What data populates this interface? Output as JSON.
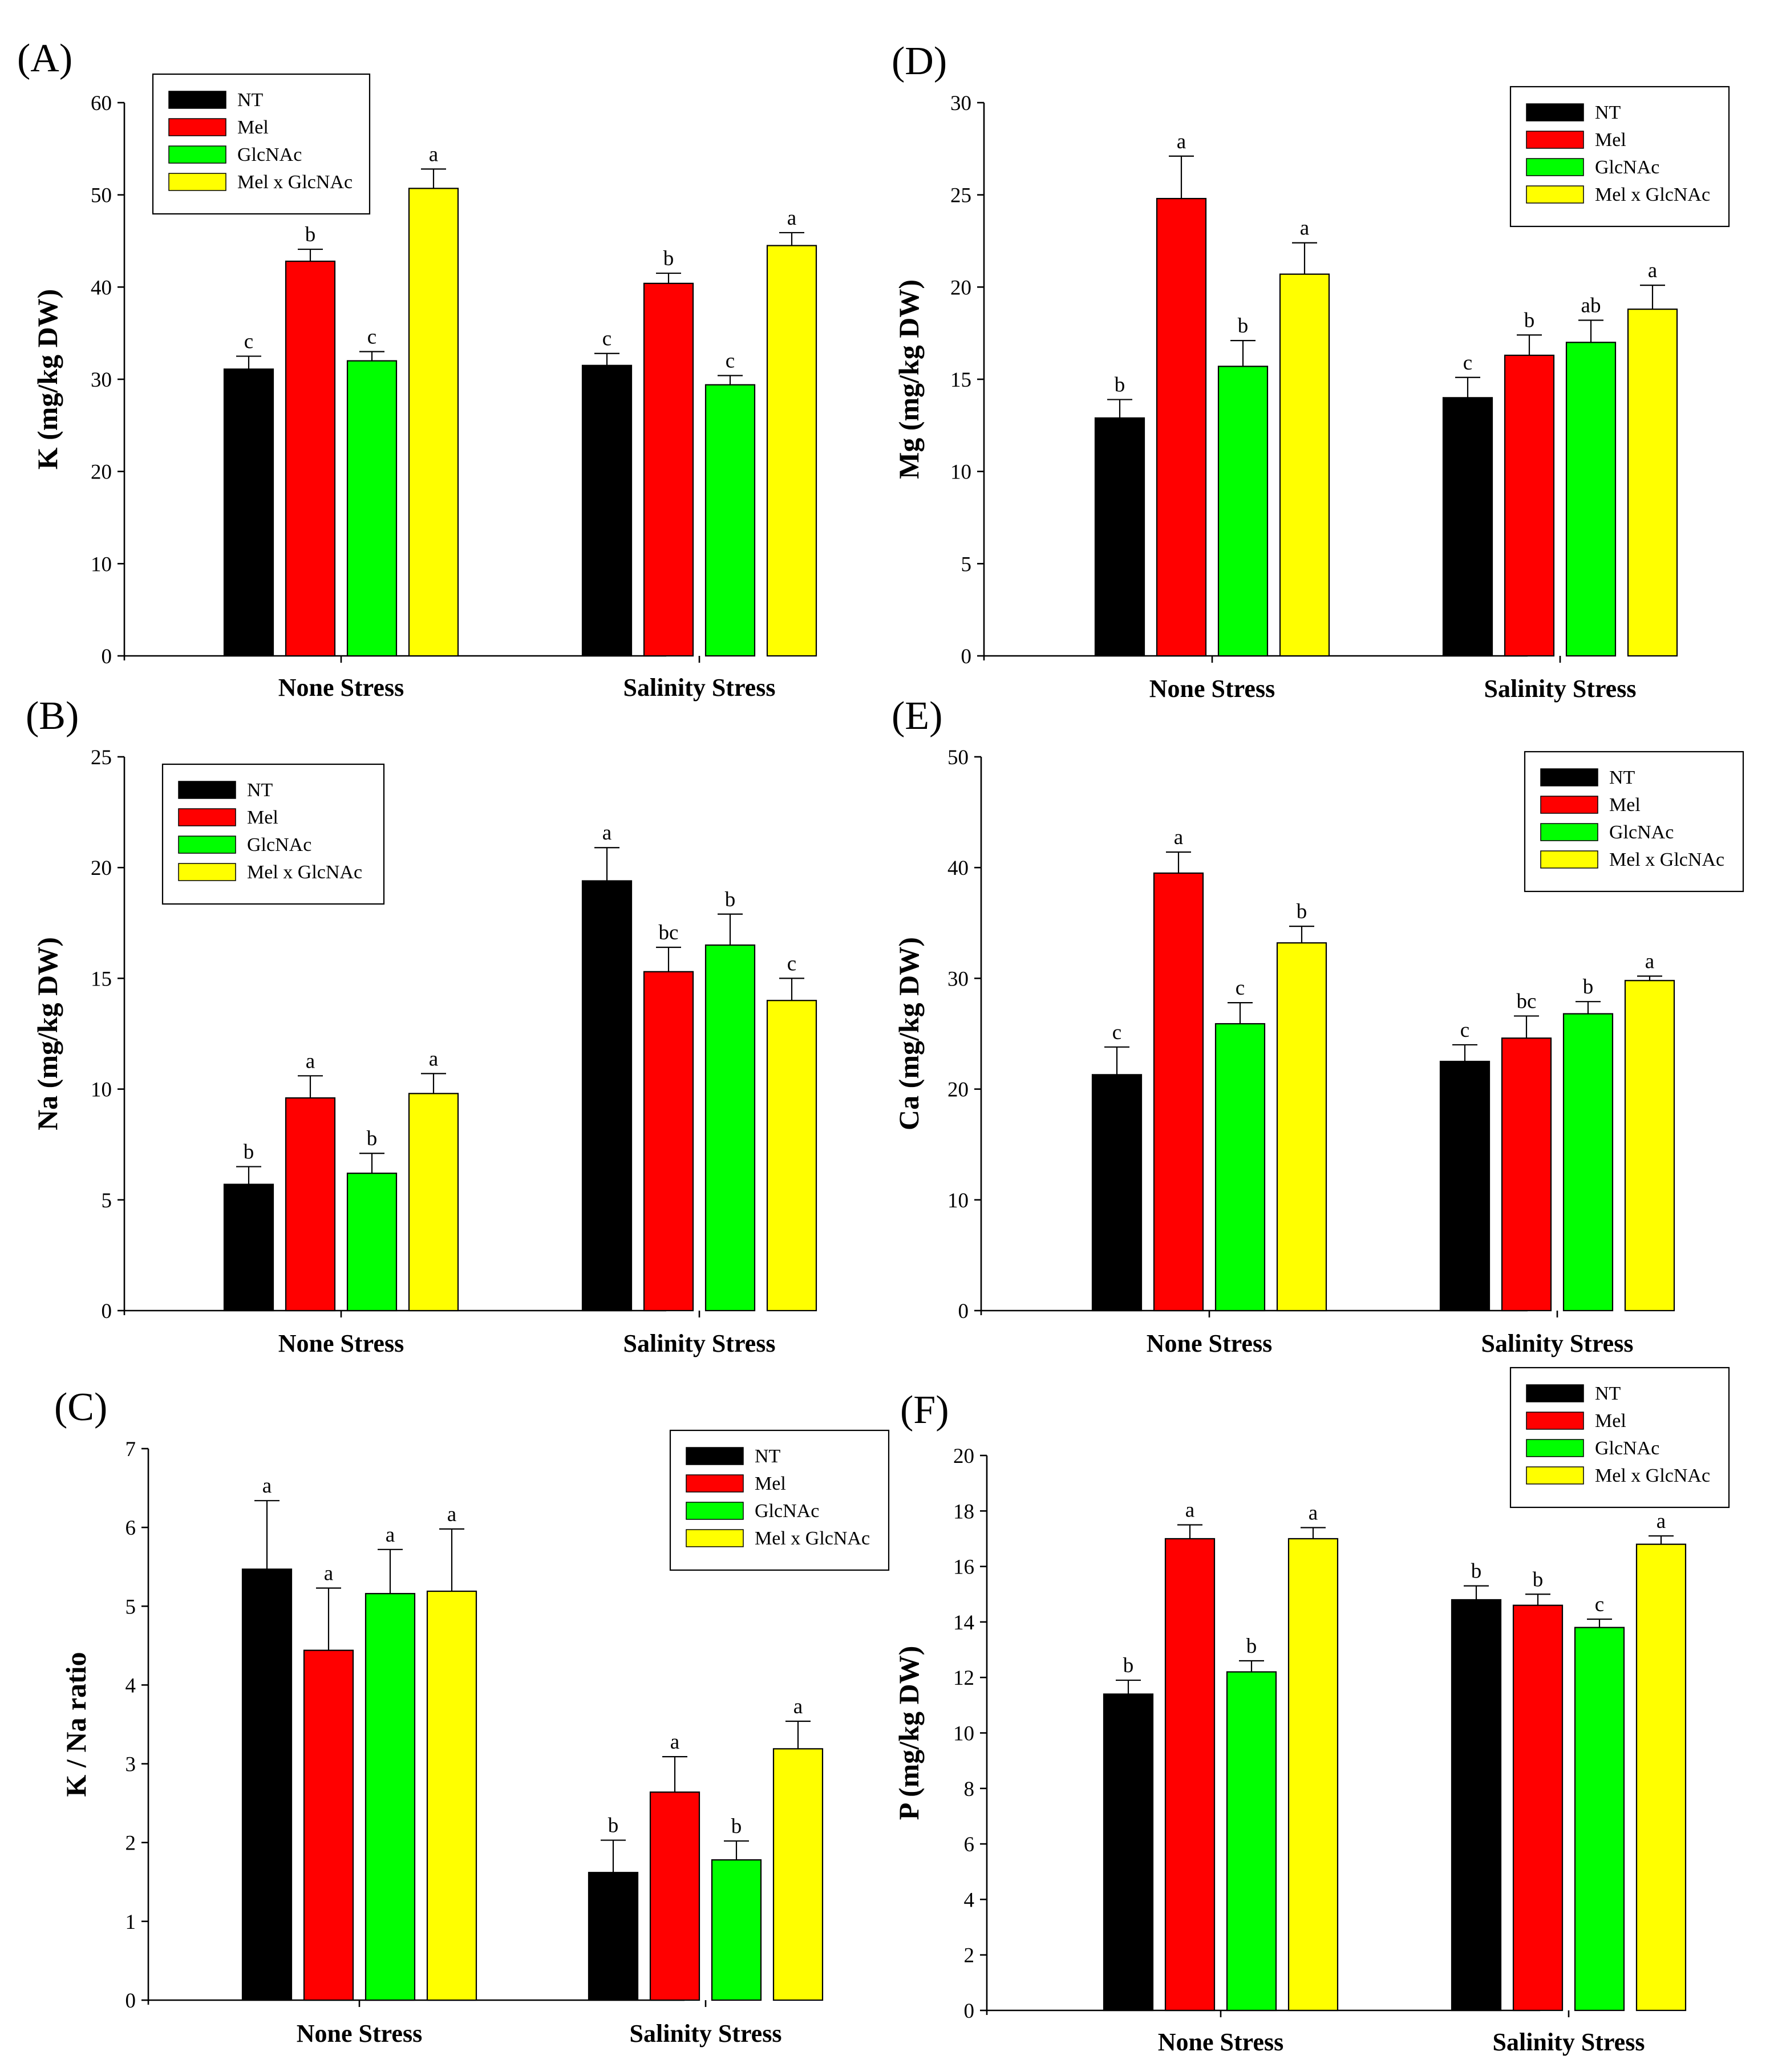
{
  "colors": {
    "NT": "#000000",
    "Mel": "#ff0000",
    "GlcNAc": "#00ff00",
    "Mel x GlcNAc": "#ffff00"
  },
  "chart_data": [
    {
      "type": "bar",
      "panel": "(A)",
      "ylabel": "K (mg/kg DW)",
      "ylim": [
        0,
        60
      ],
      "yticks": [
        0,
        10,
        20,
        30,
        40,
        50,
        60
      ],
      "categories": [
        "None Stress",
        "Salinity Stress"
      ],
      "legend_position": "top-left",
      "series": [
        {
          "name": "NT",
          "values": [
            31.1,
            31.5
          ],
          "errors": [
            1.4,
            1.3
          ],
          "letters": [
            "c",
            "c"
          ]
        },
        {
          "name": "Mel",
          "values": [
            42.8,
            40.4
          ],
          "errors": [
            1.3,
            1.1
          ],
          "letters": [
            "b",
            "b"
          ]
        },
        {
          "name": "GlcNAc",
          "values": [
            32.0,
            29.4
          ],
          "errors": [
            1.0,
            1.0
          ],
          "letters": [
            "c",
            "c"
          ]
        },
        {
          "name": "Mel x GlcNAc",
          "values": [
            50.7,
            44.5
          ],
          "errors": [
            2.1,
            1.4
          ],
          "letters": [
            "a",
            "a"
          ]
        }
      ]
    },
    {
      "type": "bar",
      "panel": "(B)",
      "ylabel": "Na (mg/kg DW)",
      "ylim": [
        0,
        25
      ],
      "yticks": [
        0,
        5,
        10,
        15,
        20,
        25
      ],
      "categories": [
        "None Stress",
        "Salinity Stress"
      ],
      "legend_position": "top-left",
      "series": [
        {
          "name": "NT",
          "values": [
            5.7,
            19.4
          ],
          "errors": [
            0.8,
            1.5
          ],
          "letters": [
            "b",
            "a"
          ]
        },
        {
          "name": "Mel",
          "values": [
            9.6,
            15.3
          ],
          "errors": [
            1.0,
            1.1
          ],
          "letters": [
            "a",
            "bc"
          ]
        },
        {
          "name": "GlcNAc",
          "values": [
            6.2,
            16.5
          ],
          "errors": [
            0.9,
            1.4
          ],
          "letters": [
            "b",
            "b"
          ]
        },
        {
          "name": "Mel x GlcNAc",
          "values": [
            9.8,
            14.0
          ],
          "errors": [
            0.9,
            1.0
          ],
          "letters": [
            "a",
            "c"
          ]
        }
      ]
    },
    {
      "type": "bar",
      "panel": "(C)",
      "ylabel": "K / Na ratio",
      "ylim": [
        0,
        7
      ],
      "yticks": [
        0,
        1,
        2,
        3,
        4,
        5,
        6,
        7
      ],
      "categories": [
        "None Stress",
        "Salinity Stress"
      ],
      "legend_position": "top-right",
      "series": [
        {
          "name": "NT",
          "values": [
            5.47,
            1.62
          ],
          "errors": [
            0.87,
            0.41
          ],
          "letters": [
            "a",
            "b"
          ]
        },
        {
          "name": "Mel",
          "values": [
            4.44,
            2.64
          ],
          "errors": [
            0.79,
            0.45
          ],
          "letters": [
            "a",
            "a"
          ]
        },
        {
          "name": "GlcNAc",
          "values": [
            5.16,
            1.78
          ],
          "errors": [
            0.56,
            0.24
          ],
          "letters": [
            "a",
            "b"
          ]
        },
        {
          "name": "Mel x GlcNAc",
          "values": [
            5.19,
            3.19
          ],
          "errors": [
            0.79,
            0.35
          ],
          "letters": [
            "a",
            "a"
          ]
        }
      ]
    },
    {
      "type": "bar",
      "panel": "(D)",
      "ylabel": "Mg (mg/kg DW)",
      "ylim": [
        0,
        30
      ],
      "yticks": [
        0,
        5,
        10,
        15,
        20,
        25,
        30
      ],
      "categories": [
        "None Stress",
        "Salinity Stress"
      ],
      "legend_position": "top-right",
      "series": [
        {
          "name": "NT",
          "values": [
            12.9,
            14.0
          ],
          "errors": [
            1.0,
            1.1
          ],
          "letters": [
            "b",
            "c"
          ]
        },
        {
          "name": "Mel",
          "values": [
            24.8,
            16.3
          ],
          "errors": [
            2.3,
            1.1
          ],
          "letters": [
            "a",
            "b"
          ]
        },
        {
          "name": "GlcNAc",
          "values": [
            15.7,
            17.0
          ],
          "errors": [
            1.4,
            1.2
          ],
          "letters": [
            "b",
            "ab"
          ]
        },
        {
          "name": "Mel x GlcNAc",
          "values": [
            20.7,
            18.8
          ],
          "errors": [
            1.7,
            1.3
          ],
          "letters": [
            "a",
            "a"
          ]
        }
      ]
    },
    {
      "type": "bar",
      "panel": "(E)",
      "ylabel": "Ca (mg/kg DW)",
      "ylim": [
        0,
        50
      ],
      "yticks": [
        0,
        10,
        20,
        30,
        40,
        50
      ],
      "categories": [
        "None Stress",
        "Salinity Stress"
      ],
      "legend_position": "top-right",
      "series": [
        {
          "name": "NT",
          "values": [
            21.3,
            22.5
          ],
          "errors": [
            2.5,
            1.5
          ],
          "letters": [
            "c",
            "c"
          ]
        },
        {
          "name": "Mel",
          "values": [
            39.5,
            24.6
          ],
          "errors": [
            1.9,
            2.0
          ],
          "letters": [
            "a",
            "bc"
          ]
        },
        {
          "name": "GlcNAc",
          "values": [
            25.9,
            26.8
          ],
          "errors": [
            1.9,
            1.1
          ],
          "letters": [
            "c",
            "b"
          ]
        },
        {
          "name": "Mel x GlcNAc",
          "values": [
            33.2,
            29.8
          ],
          "errors": [
            1.5,
            0.4
          ],
          "letters": [
            "b",
            "a"
          ]
        }
      ]
    },
    {
      "type": "bar",
      "panel": "(F)",
      "ylabel": "P (mg/kg DW)",
      "ylim": [
        0,
        20
      ],
      "yticks": [
        0,
        2,
        4,
        6,
        8,
        10,
        12,
        14,
        16,
        18,
        20
      ],
      "categories": [
        "None Stress",
        "Salinity Stress"
      ],
      "legend_position": "top-right",
      "series": [
        {
          "name": "NT",
          "values": [
            11.4,
            14.8
          ],
          "errors": [
            0.5,
            0.5
          ],
          "letters": [
            "b",
            "b"
          ]
        },
        {
          "name": "Mel",
          "values": [
            17.0,
            14.6
          ],
          "errors": [
            0.5,
            0.4
          ],
          "letters": [
            "a",
            "b"
          ]
        },
        {
          "name": "GlcNAc",
          "values": [
            12.2,
            13.8
          ],
          "errors": [
            0.4,
            0.3
          ],
          "letters": [
            "b",
            "c"
          ]
        },
        {
          "name": "Mel x GlcNAc",
          "values": [
            17.0,
            16.8
          ],
          "errors": [
            0.4,
            0.3
          ],
          "letters": [
            "a",
            "a"
          ]
        }
      ]
    }
  ]
}
